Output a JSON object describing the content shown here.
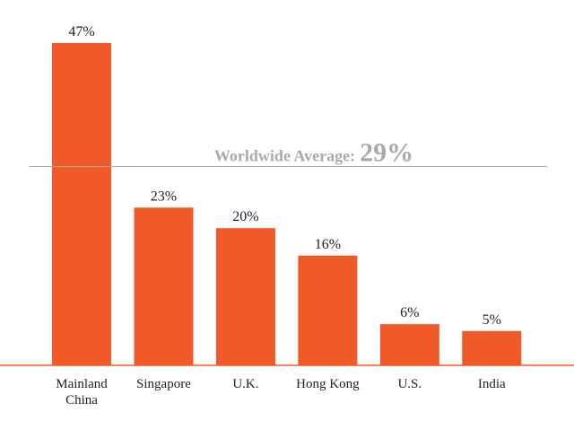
{
  "chart_data": {
    "type": "bar",
    "categories": [
      "Mainland China",
      "Singapore",
      "U.K.",
      "Hong Kong",
      "U.S.",
      "India"
    ],
    "values": [
      47,
      23,
      20,
      16,
      6,
      5
    ],
    "value_labels": [
      "47%",
      "23%",
      "20%",
      "16%",
      "6%",
      "5%"
    ],
    "color": "#f05a28",
    "ylim": [
      0,
      50
    ],
    "average": {
      "label": "Worldwide Average:",
      "value": 29,
      "value_label": "29%",
      "color": "#aaaaaa"
    }
  }
}
